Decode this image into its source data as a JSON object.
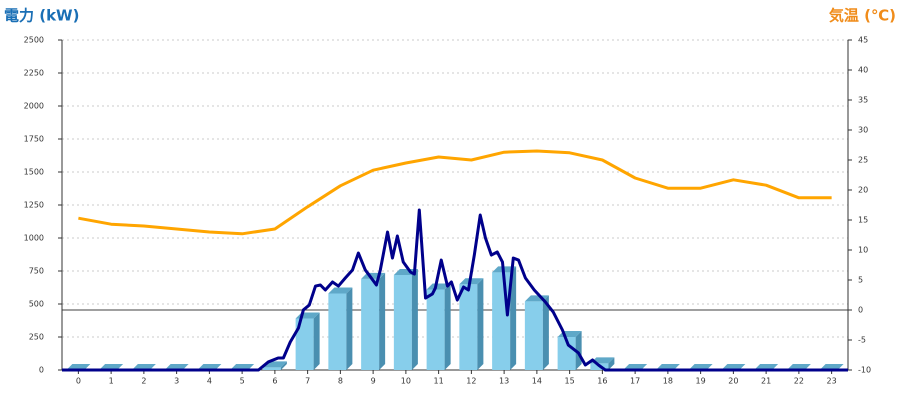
{
  "chart_data": {
    "type": "combo",
    "y_label": "電力 (kW)",
    "y2_label": "気温 (℃)",
    "y_label_color": "#1a6fb5",
    "y2_label_color": "#f08c1a",
    "categories": [
      "0",
      "1",
      "2",
      "3",
      "4",
      "5",
      "6",
      "7",
      "8",
      "9",
      "10",
      "11",
      "12",
      "13",
      "14",
      "15",
      "16",
      "17",
      "18",
      "19",
      "20",
      "21",
      "22",
      "23"
    ],
    "xlim": [
      -0.5,
      23.5
    ],
    "ylim": [
      0,
      2500
    ],
    "yticks": [
      0,
      250,
      500,
      750,
      1000,
      1250,
      1500,
      1750,
      2000,
      2250,
      2500
    ],
    "y2lim": [
      -10,
      45
    ],
    "y2ticks": [
      -10,
      -5,
      0,
      5,
      10,
      15,
      20,
      25,
      30,
      35,
      40,
      45
    ],
    "grid": true,
    "series": [
      {
        "type": "bar",
        "color": "#87ceeb",
        "values": [
          0,
          0,
          0,
          0,
          0,
          0,
          20,
          390,
          580,
          690,
          720,
          610,
          650,
          740,
          520,
          250,
          50,
          0,
          0,
          0,
          0,
          0,
          0,
          0
        ]
      },
      {
        "type": "line",
        "color": "#00008b",
        "x": [
          -0.5,
          5.5,
          5.8,
          6.1,
          6.26,
          6.47,
          6.72,
          6.87,
          7.05,
          7.24,
          7.39,
          7.54,
          7.76,
          7.94,
          8.15,
          8.37,
          8.55,
          8.76,
          8.92,
          9.1,
          9.22,
          9.44,
          9.59,
          9.74,
          9.92,
          10.14,
          10.26,
          10.41,
          10.6,
          10.81,
          10.9,
          11.08,
          11.27,
          11.39,
          11.57,
          11.76,
          11.91,
          12.09,
          12.27,
          12.43,
          12.61,
          12.79,
          12.95,
          13.1,
          13.28,
          13.44,
          13.65,
          13.92,
          14.26,
          14.5,
          14.78,
          14.96,
          15.27,
          15.48,
          15.7,
          15.88,
          16.09,
          23.5
        ],
        "values": [
          0,
          0,
          61,
          91,
          91,
          212,
          318,
          455,
          492,
          636,
          644,
          606,
          667,
          636,
          697,
          758,
          886,
          758,
          705,
          644,
          758,
          1045,
          848,
          1015,
          818,
          742,
          727,
          1212,
          545,
          576,
          621,
          833,
          636,
          667,
          530,
          629,
          606,
          871,
          1174,
          1000,
          871,
          894,
          818,
          417,
          848,
          833,
          697,
          606,
          515,
          439,
          303,
          189,
          129,
          38,
          76,
          38,
          0,
          0
        ]
      },
      {
        "type": "line",
        "axis": "y2",
        "color": "#ffa500",
        "values": [
          15.3,
          14.3,
          14,
          13.5,
          13,
          12.7,
          13.5,
          17.2,
          20.7,
          23.3,
          24.5,
          25.5,
          25,
          26.3,
          26.5,
          26.2,
          25,
          22,
          20.3,
          20.3,
          21.7,
          20.8,
          18.7,
          18.7
        ]
      }
    ]
  }
}
